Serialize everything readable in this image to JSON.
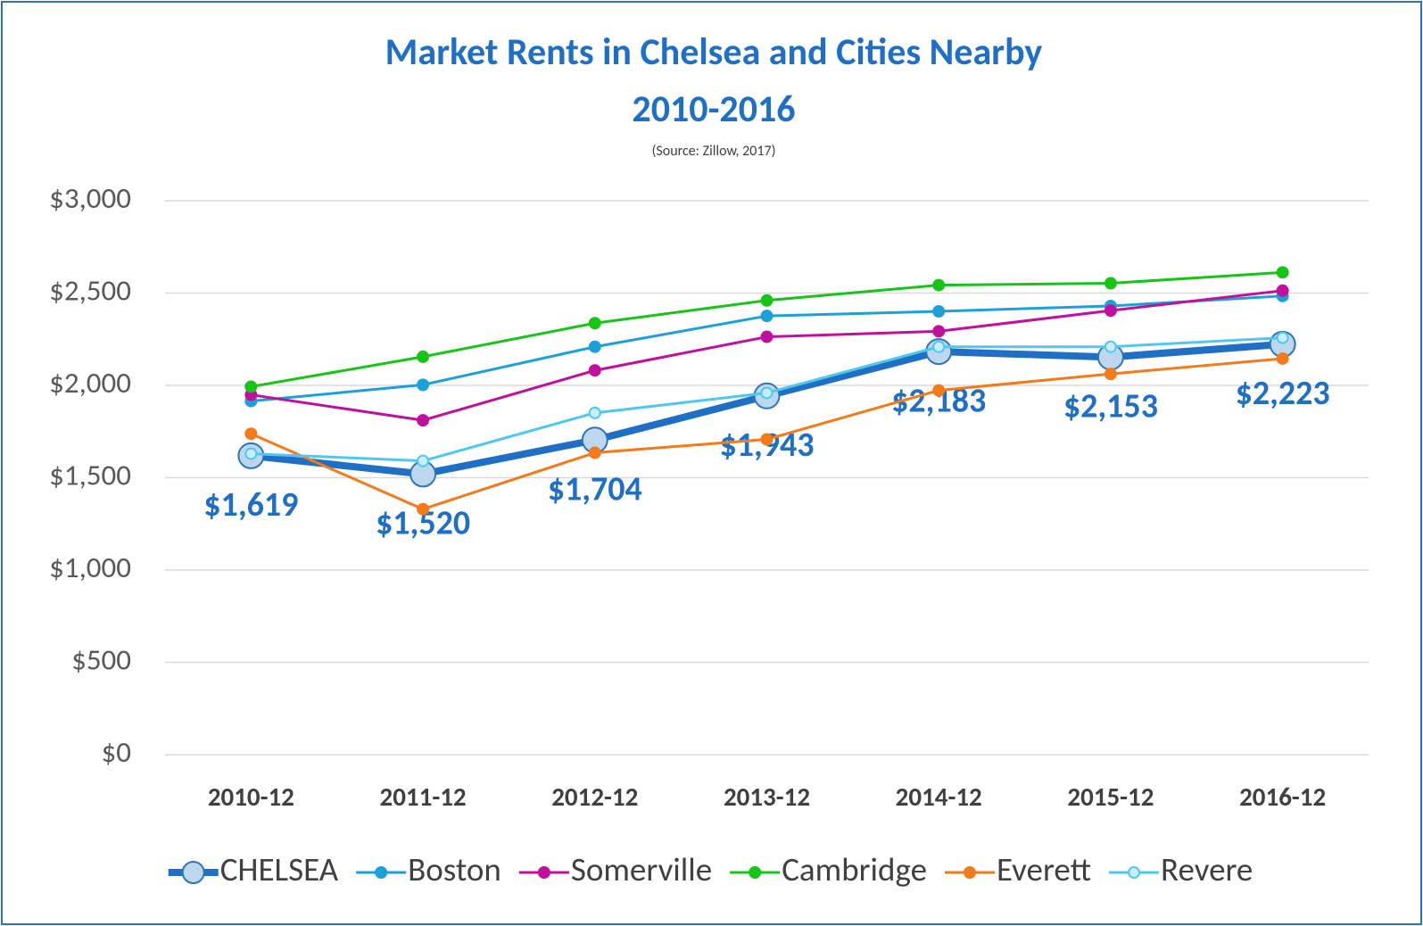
{
  "chart_data": {
    "type": "line",
    "title": [
      "Market Rents in Chelsea and Cities Nearby",
      "2010-2016"
    ],
    "subtitle": "(Source: Zillow, 2017)",
    "categories": [
      "2010-12",
      "2011-12",
      "2012-12",
      "2013-12",
      "2014-12",
      "2015-12",
      "2016-12"
    ],
    "ylim": [
      0,
      3000
    ],
    "yticks": [
      {
        "value": 0,
        "label": "$0"
      },
      {
        "value": 500,
        "label": "$500"
      },
      {
        "value": 1000,
        "label": "$1,000"
      },
      {
        "value": 1500,
        "label": "$1,500"
      },
      {
        "value": 2000,
        "label": "$2,000"
      },
      {
        "value": 2500,
        "label": "$2,500"
      },
      {
        "value": 3000,
        "label": "$3,000"
      }
    ],
    "grid": true,
    "legend": "bottom",
    "series": [
      {
        "name": "CHELSEA",
        "color": "#1f6fc5",
        "values": [
          1619,
          1520,
          1704,
          1943,
          2183,
          2153,
          2223
        ],
        "value_labels": [
          "$1,619",
          "$1,520",
          "$1,704",
          "$1,943",
          "$2,183",
          "$2,153",
          "$2,223"
        ]
      },
      {
        "name": "Boston",
        "color": "#1ca0d8",
        "values": [
          1915,
          2003,
          2209,
          2376,
          2401,
          2430,
          2484
        ]
      },
      {
        "name": "Somerville",
        "color": "#c0119c",
        "values": [
          1949,
          1811,
          2081,
          2263,
          2293,
          2405,
          2513
        ]
      },
      {
        "name": "Cambridge",
        "color": "#18c418",
        "values": [
          1993,
          2155,
          2337,
          2460,
          2543,
          2553,
          2612
        ]
      },
      {
        "name": "Everett",
        "color": "#f47a1a",
        "values": [
          1738,
          1330,
          1635,
          1708,
          1973,
          2062,
          2145
        ]
      },
      {
        "name": "Revere",
        "color": "#4fc8f0",
        "values": [
          1630,
          1591,
          1851,
          1959,
          2209,
          2209,
          2258
        ]
      }
    ]
  }
}
